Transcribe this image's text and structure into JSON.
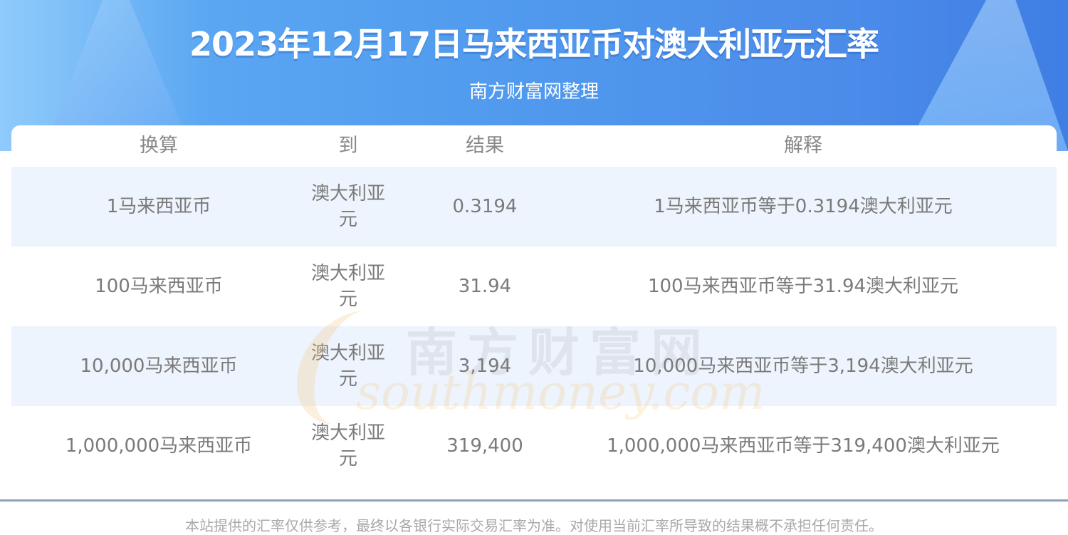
{
  "header": {
    "title": "2023年12月17日马来西亚币对澳大利亚元汇率",
    "subtitle": "南方财富网整理"
  },
  "table": {
    "columns": [
      "换算",
      "到",
      "结果",
      "解释"
    ],
    "rows": [
      {
        "from": "1马来西亚币",
        "to": "澳大利亚元",
        "result": "0.3194",
        "explain": "1马来西亚币等于0.3194澳大利亚元"
      },
      {
        "from": "100马来西亚币",
        "to": "澳大利亚元",
        "result": "31.94",
        "explain": "100马来西亚币等于31.94澳大利亚元"
      },
      {
        "from": "10,000马来西亚币",
        "to": "澳大利亚元",
        "result": "3,194",
        "explain": "10,000马来西亚币等于3,194澳大利亚元"
      },
      {
        "from": "1,000,000马来西亚币",
        "to": "澳大利亚元",
        "result": "319,400",
        "explain": "1,000,000马来西亚币等于319,400澳大利亚元"
      }
    ]
  },
  "watermark": {
    "cn": "南方财富网",
    "en": "southmoney.com"
  },
  "footer": {
    "disclaimer": "本站提供的汇率仅供参考，最终以各银行实际交易汇率为准。对使用当前汇率所导致的结果概不承担任何责任。"
  },
  "colors": {
    "banner": "#5099ee",
    "stripe": "#eef4fd",
    "text": "#7a7a7a",
    "divider": "#8aa0bb"
  }
}
